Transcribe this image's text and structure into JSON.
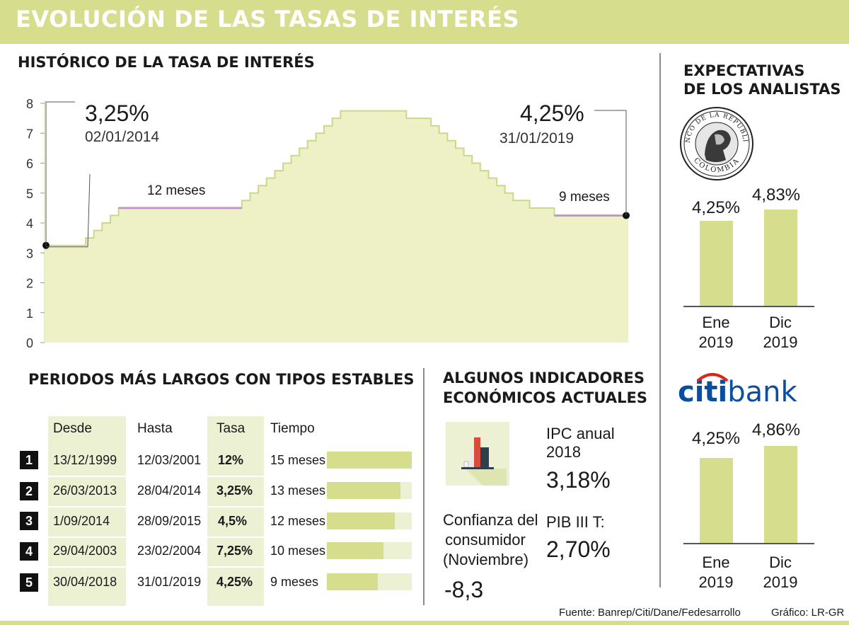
{
  "title": "EVOLUCIÓN DE LAS TASAS DE INTERÉS",
  "colors": {
    "accent": "#d6dd8d",
    "area_fill": "#eef1c6",
    "area_line": "#cfd68a",
    "highlight": "#c497c9",
    "text": "#1a1a1a"
  },
  "history": {
    "section_title": "HISTÓRICO DE LA TASA DE INTERÉS",
    "start_rate": "3,25%",
    "start_date": "02/01/2014",
    "end_rate": "4,25%",
    "end_date": "31/01/2019",
    "label_12": "12 meses",
    "label_9": "9 meses"
  },
  "chart_data": {
    "type": "area",
    "title": "HISTÓRICO DE LA TASA DE INTERÉS",
    "xlabel": "",
    "ylabel": "",
    "ylim": [
      0,
      8
    ],
    "y_ticks": [
      "0",
      "1",
      "2",
      "3",
      "4",
      "5",
      "6",
      "7",
      "8"
    ],
    "step": true,
    "series": [
      {
        "values": [
          3.25,
          3.25,
          3.25,
          3.25,
          3.25,
          3.5,
          3.75,
          4.0,
          4.25,
          4.5,
          4.5,
          4.5,
          4.5,
          4.5,
          4.5,
          4.5,
          4.5,
          4.5,
          4.5,
          4.5,
          4.5,
          4.5,
          4.5,
          4.5,
          4.75,
          5.0,
          5.25,
          5.5,
          5.75,
          6.0,
          6.25,
          6.5,
          6.75,
          7.0,
          7.25,
          7.5,
          7.75,
          7.75,
          7.75,
          7.75,
          7.75,
          7.75,
          7.75,
          7.75,
          7.5,
          7.5,
          7.5,
          7.25,
          7.0,
          6.75,
          6.5,
          6.25,
          6.0,
          5.75,
          5.5,
          5.25,
          5.0,
          4.75,
          4.75,
          4.5,
          4.5,
          4.5,
          4.25,
          4.25,
          4.25,
          4.25,
          4.25,
          4.25,
          4.25,
          4.25,
          4.25
        ]
      }
    ],
    "highlights": [
      {
        "label": "12 meses",
        "value": 4.5
      },
      {
        "label": "9 meses",
        "value": 4.25
      }
    ],
    "start_point": {
      "date": "02/01/2014",
      "value": 3.25
    },
    "end_point": {
      "date": "31/01/2019",
      "value": 4.25
    }
  },
  "table": {
    "section_title": "PERIODOS MÁS LARGOS CON TIPOS ESTABLES",
    "headers": [
      "Desde",
      "Hasta",
      "Tasa",
      "Tiempo"
    ],
    "rows": [
      {
        "rank": "1",
        "desde": "13/12/1999",
        "hasta": "12/03/2001",
        "tasa": "12%",
        "tiempo": "15 meses",
        "months": 15
      },
      {
        "rank": "2",
        "desde": "26/03/2013",
        "hasta": "28/04/2014",
        "tasa": "3,25%",
        "tiempo": "13 meses",
        "months": 13
      },
      {
        "rank": "3",
        "desde": "1/09/2014",
        "hasta": "28/09/2015",
        "tasa": "4,5%",
        "tiempo": "12 meses",
        "months": 12
      },
      {
        "rank": "4",
        "desde": "29/04/2003",
        "hasta": "23/02/2004",
        "tasa": "7,25%",
        "tiempo": "10 meses",
        "months": 10
      },
      {
        "rank": "5",
        "desde": "30/04/2018",
        "hasta": "31/01/2019",
        "tasa": "4,25%",
        "tiempo": "9 meses",
        "months": 9
      }
    ]
  },
  "indicators": {
    "section_title_1": "ALGUNOS INDICADORES",
    "section_title_2": "ECONÓMICOS ACTUALES",
    "ipc_label_1": "IPC anual",
    "ipc_label_2": "2018",
    "ipc_value": "3,18%",
    "conf_label_1": "Confianza del",
    "conf_label_2": "consumidor",
    "conf_label_3": "(Noviembre)",
    "conf_value": "-8,3",
    "pib_label": "PIB III T:",
    "pib_value": "2,70%"
  },
  "expectations": {
    "section_title_1": "EXPECTATIVAS",
    "section_title_2": "DE LOS ANALISTAS",
    "banrep_logo_text": [
      "BANCO DE LA REPUBLICA",
      "COLOMBIA"
    ],
    "citi_logo_text": {
      "part1": "citi",
      "part2": "bank"
    },
    "banrep": [
      {
        "period_1": "Ene",
        "period_2": "2019",
        "value_label": "4,25%",
        "value": 4.25
      },
      {
        "period_1": "Dic",
        "period_2": "2019",
        "value_label": "4,83%",
        "value": 4.83
      }
    ],
    "citi": [
      {
        "period_1": "Ene",
        "period_2": "2019",
        "value_label": "4,25%",
        "value": 4.25
      },
      {
        "period_1": "Dic",
        "period_2": "2019",
        "value_label": "4,86%",
        "value": 4.86
      }
    ]
  },
  "footer": {
    "source": "Fuente: Banrep/Citi/Dane/Fedesarrollo",
    "credit": "Gráfico: LR-GR"
  }
}
